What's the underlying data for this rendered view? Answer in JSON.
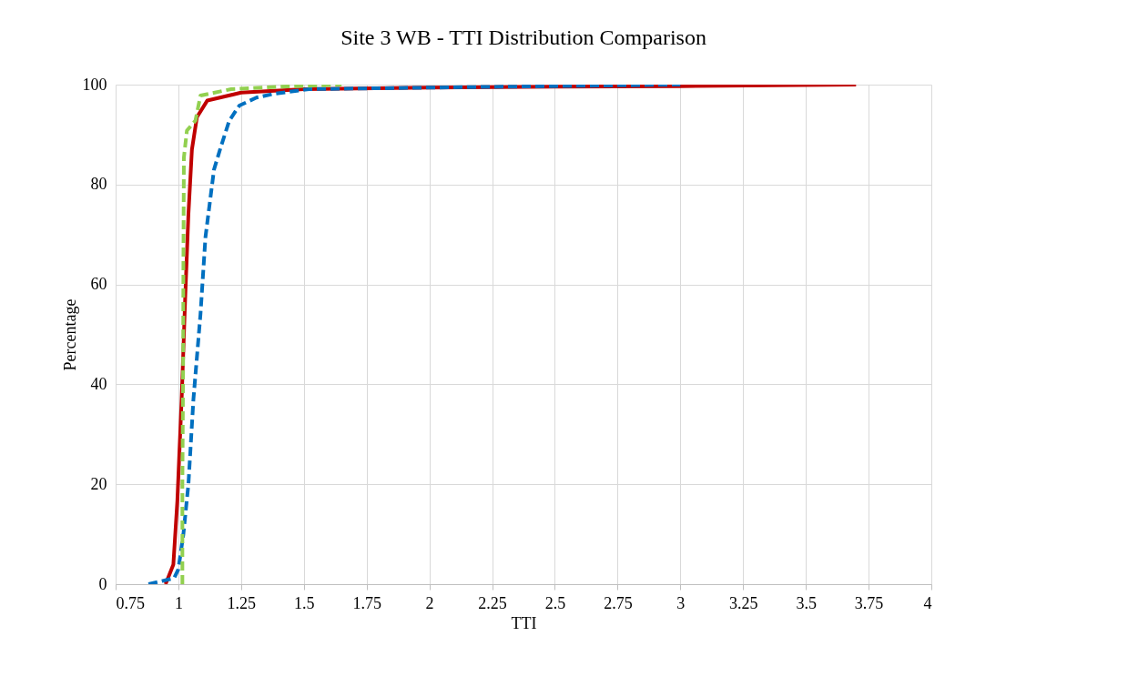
{
  "chart_data": {
    "type": "line",
    "title": "Site 3 WB - TTI Distribution Comparison",
    "xlabel": "TTI",
    "ylabel": "Percentage",
    "xlim": [
      0.75,
      4
    ],
    "xticks": [
      0.75,
      1,
      1.25,
      1.5,
      1.75,
      2,
      2.25,
      2.5,
      2.75,
      3,
      3.25,
      3.5,
      3.75,
      4
    ],
    "ylim": [
      0,
      100
    ],
    "yticks": [
      0,
      20,
      40,
      60,
      80,
      100
    ],
    "grid": true,
    "marker": "none",
    "series": [
      {
        "color": "#c00000",
        "line_style": "solid",
        "x": [
          0.949,
          0.98,
          0.996,
          1.013,
          1.027,
          1.04,
          1.054,
          1.074,
          1.115,
          1.25,
          1.5,
          2.0,
          2.5,
          3.0,
          3.7
        ],
        "values": [
          0,
          3.9,
          16.7,
          37,
          57,
          74,
          87,
          93.5,
          96.8,
          98.4,
          99.1,
          99.4,
          99.6,
          99.7,
          100
        ]
      },
      {
        "color": "#0070c0",
        "line_style": "dashed",
        "x": [
          0.881,
          0.983,
          1.0,
          1.02,
          1.04,
          1.06,
          1.088,
          1.108,
          1.142,
          1.169,
          1.203,
          1.243,
          1.311,
          1.385,
          1.52,
          2.0,
          2.5,
          3.0
        ],
        "values": [
          0,
          1.2,
          3,
          10,
          20,
          37,
          54,
          69.5,
          83,
          87.5,
          92.8,
          95.8,
          97.4,
          98.2,
          99.1,
          99.4,
          99.7,
          100
        ]
      },
      {
        "color": "#92d050",
        "line_style": "dashed",
        "x": [
          1.016,
          1.016,
          1.019,
          1.02,
          1.022,
          1.034,
          1.068,
          1.088,
          1.21,
          1.41,
          1.65
        ],
        "values": [
          0,
          20,
          43.6,
          63.8,
          85.4,
          90.8,
          92.8,
          97.8,
          99.1,
          99.6,
          100
        ]
      }
    ]
  }
}
